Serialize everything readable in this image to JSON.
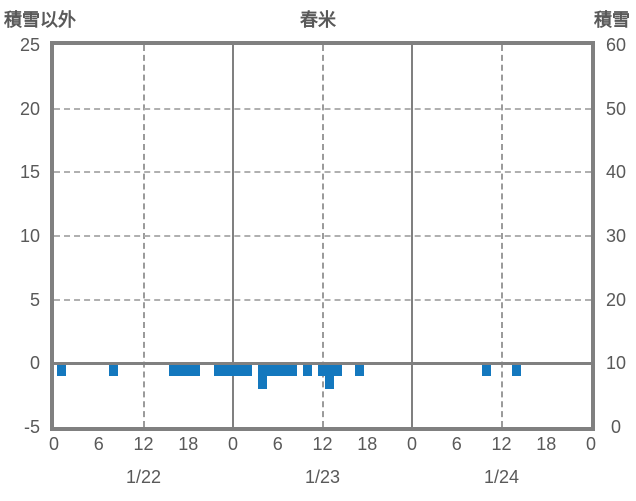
{
  "header": {
    "left_axis_title": "積雪以外",
    "chart_title": "春米",
    "right_axis_title": "積雪"
  },
  "colors": {
    "bar_blue": "#1478BE",
    "axis_gray": "#808080",
    "grid_gray": "#9B9B9B",
    "text_gray": "#595959",
    "background": "#FFFFFF"
  },
  "chart_data": {
    "type": "bar",
    "title": "春米",
    "left_axis": {
      "title": "積雪以外",
      "min": -5,
      "max": 25,
      "ticks": [
        25,
        20,
        15,
        10,
        5,
        0,
        -5
      ]
    },
    "right_axis": {
      "title": "積雪",
      "min": 0,
      "max": 60,
      "ticks": [
        60,
        50,
        40,
        30,
        20,
        10,
        0
      ]
    },
    "x_axis": {
      "unit": "hour",
      "total_hours": 72,
      "hour_ticks": [
        {
          "hour": 0,
          "label": "0"
        },
        {
          "hour": 6,
          "label": "6"
        },
        {
          "hour": 12,
          "label": "12"
        },
        {
          "hour": 18,
          "label": "18"
        },
        {
          "hour": 24,
          "label": "0"
        },
        {
          "hour": 30,
          "label": "6"
        },
        {
          "hour": 36,
          "label": "12"
        },
        {
          "hour": 42,
          "label": "18"
        },
        {
          "hour": 48,
          "label": "0"
        },
        {
          "hour": 54,
          "label": "6"
        },
        {
          "hour": 60,
          "label": "12"
        },
        {
          "hour": 66,
          "label": "18"
        },
        {
          "hour": 72,
          "label": "0"
        }
      ],
      "day_labels": [
        {
          "hour": 12,
          "label": "1/22"
        },
        {
          "hour": 36,
          "label": "1/23"
        },
        {
          "hour": 60,
          "label": "1/24"
        }
      ]
    },
    "gridlines": {
      "vertical_dashed_at_hours": [
        12,
        36,
        60
      ],
      "vertical_solid_at_hours": [
        24,
        48
      ],
      "horizontal_dashed_at_values": [
        20,
        15,
        10,
        5
      ],
      "zero_line_at_value": 0
    },
    "series": [
      {
        "name": "積雪以外",
        "color": "#1478BE",
        "points": [
          {
            "hour": 1,
            "value": -1
          },
          {
            "hour": 8,
            "value": -1
          },
          {
            "hour": 16,
            "value": -1
          },
          {
            "hour": 17,
            "value": -1
          },
          {
            "hour": 18,
            "value": -1
          },
          {
            "hour": 19,
            "value": -1
          },
          {
            "hour": 22,
            "value": -1
          },
          {
            "hour": 23,
            "value": -1
          },
          {
            "hour": 24,
            "value": -1
          },
          {
            "hour": 25,
            "value": -1
          },
          {
            "hour": 26,
            "value": -1
          },
          {
            "hour": 28,
            "value": -2
          },
          {
            "hour": 29,
            "value": -1
          },
          {
            "hour": 30,
            "value": -1
          },
          {
            "hour": 31,
            "value": -1
          },
          {
            "hour": 32,
            "value": -1
          },
          {
            "hour": 34,
            "value": -1
          },
          {
            "hour": 36,
            "value": -1
          },
          {
            "hour": 37,
            "value": -2
          },
          {
            "hour": 38,
            "value": -1
          },
          {
            "hour": 41,
            "value": -1
          },
          {
            "hour": 58,
            "value": -1
          },
          {
            "hour": 62,
            "value": -1
          }
        ]
      }
    ]
  }
}
